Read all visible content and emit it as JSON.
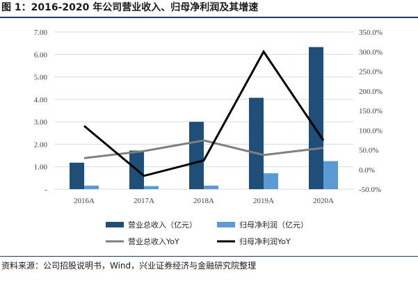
{
  "figure": {
    "title": "图 1：2016-2020 年公司营业收入、归母净利润及其增速",
    "source": "资料来源：公司招股说明书，Wind，兴业证券经济与金融研究院整理"
  },
  "chart_data": {
    "type": "bar",
    "categories": [
      "2016A",
      "2017A",
      "2018A",
      "2019A",
      "2020A"
    ],
    "series": [
      {
        "name": "营业总收入（亿元）",
        "type": "bar",
        "axis": "left",
        "color": "#1f4e79",
        "values": [
          1.18,
          1.72,
          3.0,
          4.07,
          6.33
        ]
      },
      {
        "name": "归母净利润（亿元）",
        "type": "bar",
        "axis": "left",
        "color": "#5b9bd5",
        "values": [
          0.16,
          0.14,
          0.16,
          0.71,
          1.25
        ]
      },
      {
        "name": "营业总收入YoY",
        "type": "line",
        "axis": "right",
        "color": "#7f7f7f",
        "values": [
          29,
          47,
          74,
          37,
          55
        ]
      },
      {
        "name": "归母净利润YoY",
        "type": "line",
        "axis": "right",
        "color": "#000000",
        "values": [
          111,
          -16,
          23,
          300,
          74
        ]
      }
    ],
    "left_axis": {
      "min": 0,
      "max": 7,
      "step": 1,
      "ticks": [
        "-",
        "1.00",
        "2.00",
        "3.00",
        "4.00",
        "5.00",
        "6.00",
        "7.00"
      ]
    },
    "right_axis": {
      "min": -50,
      "max": 350,
      "step": 50,
      "ticks": [
        "-50.0%",
        "0.0%",
        "50.0%",
        "100.0%",
        "150.0%",
        "200.0%",
        "250.0%",
        "300.0%",
        "350.0%"
      ]
    },
    "grid": true,
    "legend": "bottom"
  }
}
